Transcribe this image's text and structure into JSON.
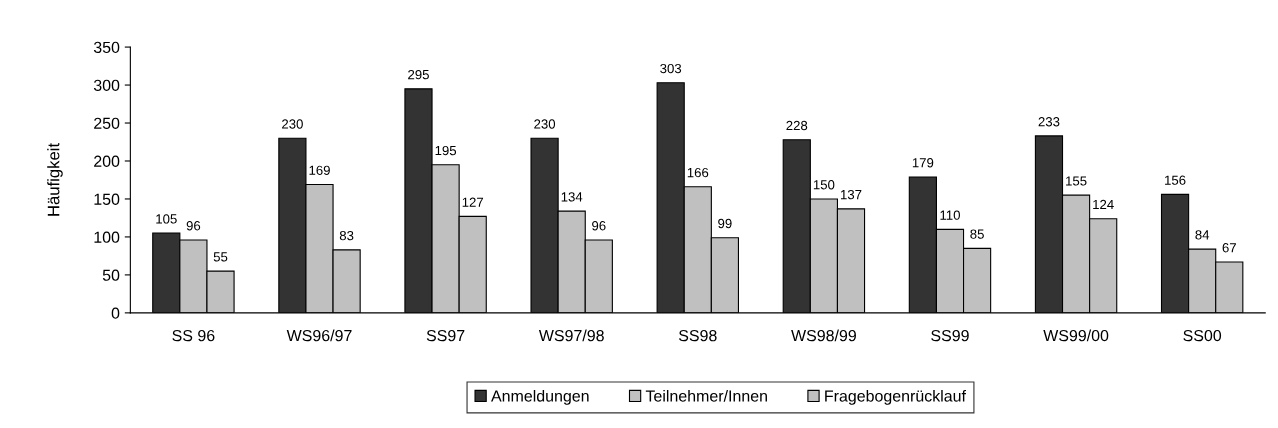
{
  "chart_data": {
    "type": "bar",
    "ylabel": "Häufigkeit",
    "categories": [
      "SS 96",
      "WS96/97",
      "SS97",
      "WS97/98",
      "SS98",
      "WS98/99",
      "SS99",
      "WS99/00",
      "SS00"
    ],
    "series": [
      {
        "name": "Anmeldungen",
        "color": "#333333",
        "values": [
          105,
          230,
          295,
          230,
          303,
          228,
          179,
          233,
          156
        ]
      },
      {
        "name": "Teilnehmer/Innen",
        "color": "#c0c0c0",
        "values": [
          96,
          169,
          195,
          134,
          166,
          150,
          110,
          155,
          84
        ]
      },
      {
        "name": "Fragebogenrücklauf",
        "color": "#c0c0c0",
        "values": [
          55,
          83,
          127,
          96,
          99,
          137,
          85,
          124,
          67
        ]
      }
    ],
    "ylim": [
      0,
      350
    ],
    "yticks": [
      0,
      50,
      100,
      150,
      200,
      250,
      300,
      350
    ],
    "grid": false,
    "legend": "bottom",
    "data_labels": true
  }
}
